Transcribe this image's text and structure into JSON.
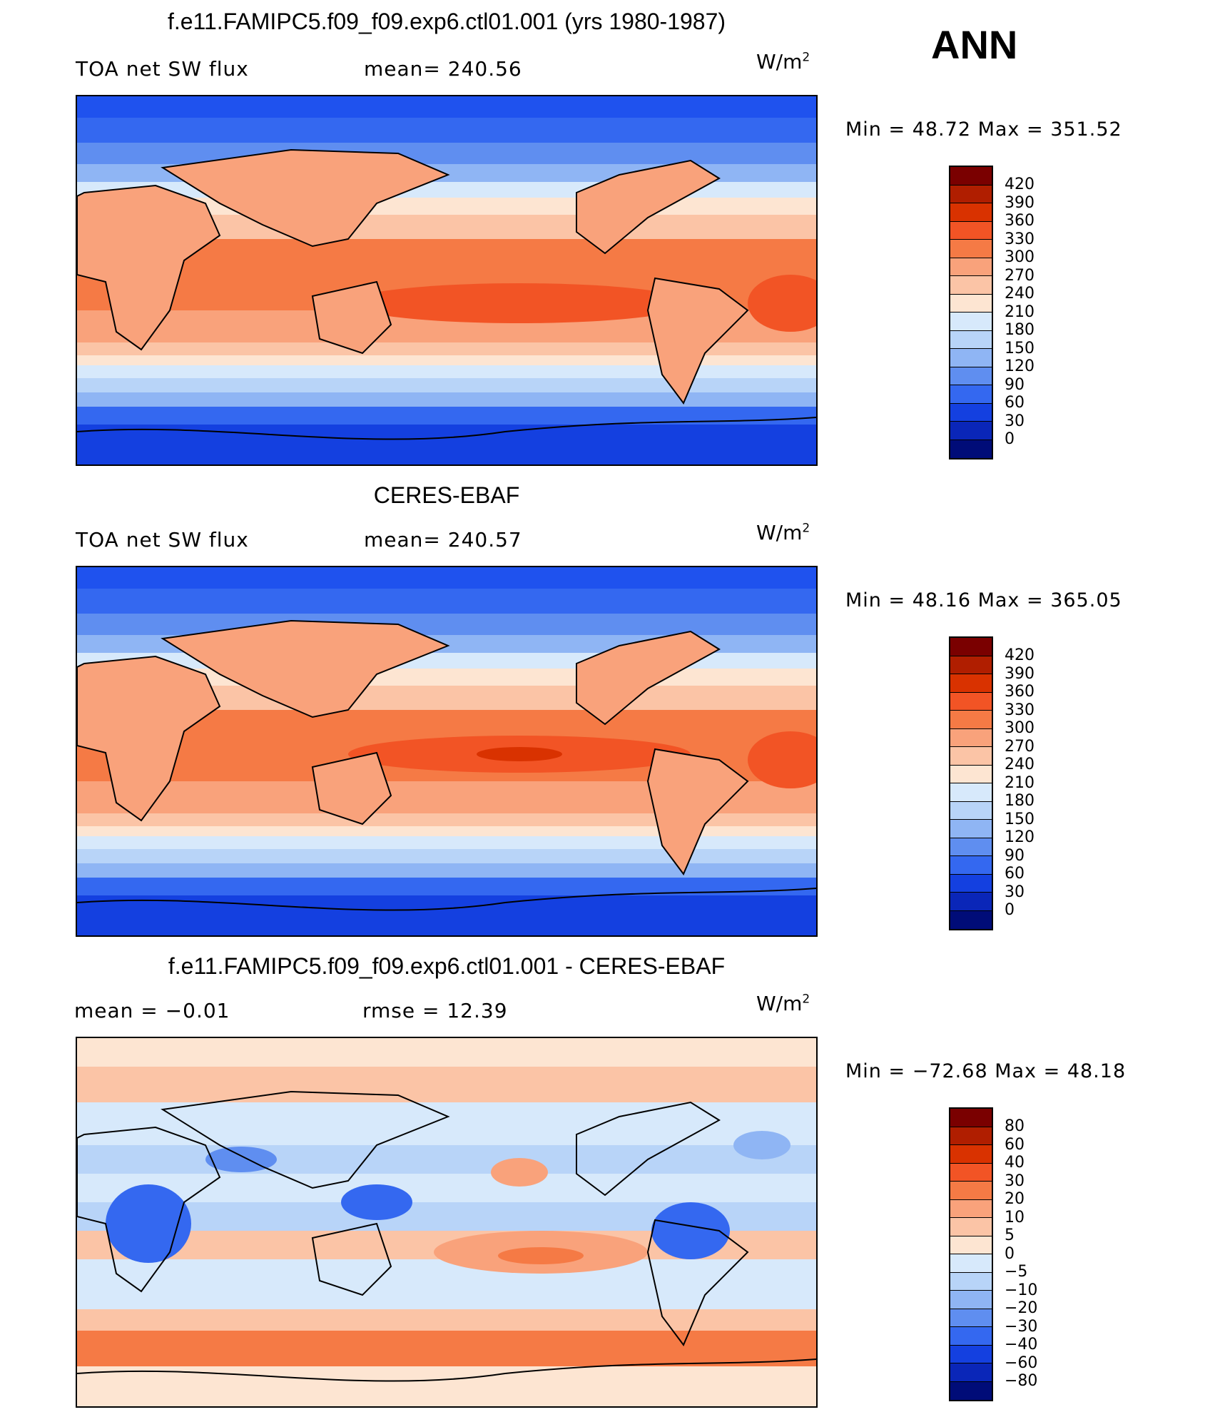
{
  "season": "ANN",
  "units": {
    "base": "W/m",
    "exp": "2"
  },
  "panels": [
    {
      "title": "f.e11.FAMIPC5.f09_f09.exp6.ctl01.001 (yrs 1980-1987)",
      "left_text": "TOA net SW flux",
      "center_text": "mean= 240.56",
      "min_text": "Min = 48.72",
      "max_text": "Max = 351.52",
      "type": "field"
    },
    {
      "title": "CERES-EBAF",
      "left_text": "TOA net SW flux",
      "center_text": "mean= 240.57",
      "min_text": "Min = 48.16",
      "max_text": "Max = 365.05",
      "type": "field"
    },
    {
      "title": "f.e11.FAMIPC5.f09_f09.exp6.ctl01.001 - CERES-EBAF",
      "left_text": "mean =  −0.01",
      "center_text": "rmse =   12.39",
      "min_text": "Min = −72.68",
      "max_text": "Max =  48.18",
      "type": "diff"
    }
  ],
  "colorbar_field": {
    "labels": [
      "420",
      "390",
      "360",
      "330",
      "300",
      "270",
      "240",
      "210",
      "180",
      "150",
      "120",
      "90",
      "60",
      "30",
      "0"
    ],
    "colors": [
      "#7a0000",
      "#b01e00",
      "#d93200",
      "#f25425",
      "#f57a45",
      "#f9a27b",
      "#fbc4a6",
      "#fde5d2",
      "#d7e9fb",
      "#b8d4f8",
      "#8fb5f4",
      "#5f8ef0",
      "#3468f0",
      "#1440e0",
      "#0a26b8",
      "#000c78"
    ]
  },
  "colorbar_diff": {
    "labels": [
      "80",
      "60",
      "40",
      "30",
      "20",
      "10",
      "5",
      "0",
      "−5",
      "−10",
      "−20",
      "−30",
      "−40",
      "−60",
      "−80"
    ],
    "colors": [
      "#7a0000",
      "#b01e00",
      "#d93200",
      "#f25425",
      "#f57a45",
      "#f9a27b",
      "#fbc4a6",
      "#fde5d2",
      "#d7e9fb",
      "#b8d4f8",
      "#8fb5f4",
      "#5f8ef0",
      "#3468f0",
      "#1440e0",
      "#0a26b8",
      "#000c78"
    ]
  }
}
